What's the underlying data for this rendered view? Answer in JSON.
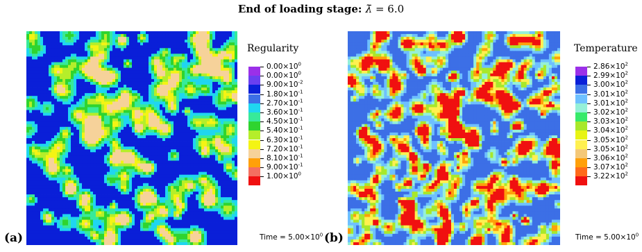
{
  "title": {
    "prefix": "End of loading stage: ",
    "symbol": "λ̄",
    "suffix": " = 6.0"
  },
  "panels": [
    {
      "label": "(a)",
      "legend_title": "Regularity",
      "time_text": "Time = 5.00×10",
      "time_exp": "0",
      "palette": [
        "#9b30e8",
        "#6a3ff0",
        "#0a1fd8",
        "#3c6fe6",
        "#1fd6f0",
        "#37ea9a",
        "#2fd42f",
        "#b5ee2a",
        "#f4f414",
        "#f6d29a",
        "#ffa00a",
        "#f46f60",
        "#f01010"
      ],
      "legend_values": [
        {
          "mant": "0.00×10",
          "exp": "0"
        },
        {
          "mant": "0.00×10",
          "exp": "0"
        },
        {
          "mant": "9.00×10",
          "exp": "-2"
        },
        {
          "mant": "1.80×10",
          "exp": "-1"
        },
        {
          "mant": "2.70×10",
          "exp": "-1"
        },
        {
          "mant": "3.60×10",
          "exp": "-1"
        },
        {
          "mant": "4.50×10",
          "exp": "-1"
        },
        {
          "mant": "5.40×10",
          "exp": "-1"
        },
        {
          "mant": "6.30×10",
          "exp": "-1"
        },
        {
          "mant": "7.20×10",
          "exp": "-1"
        },
        {
          "mant": "8.10×10",
          "exp": "-1"
        },
        {
          "mant": "9.00×10",
          "exp": "-1"
        },
        {
          "mant": "1.00×10",
          "exp": "0"
        }
      ]
    },
    {
      "label": "(b)",
      "legend_title": "Temperature",
      "time_text": "Time = 5.00×10",
      "time_exp": "0",
      "palette": [
        "#9b30e8",
        "#0a1fd8",
        "#3c6fe6",
        "#6ec0ff",
        "#95f0d8",
        "#37ea6a",
        "#a8e82a",
        "#e8f414",
        "#fff050",
        "#f4c878",
        "#ffa00a",
        "#ff6a1a",
        "#f01010"
      ],
      "legend_values": [
        {
          "mant": "2.86×10",
          "exp": "2"
        },
        {
          "mant": "2.99×10",
          "exp": "2"
        },
        {
          "mant": "3.00×10",
          "exp": "2"
        },
        {
          "mant": "3.01×10",
          "exp": "2"
        },
        {
          "mant": "3.01×10",
          "exp": "2"
        },
        {
          "mant": "3.02×10",
          "exp": "2"
        },
        {
          "mant": "3.03×10",
          "exp": "2"
        },
        {
          "mant": "3.04×10",
          "exp": "2"
        },
        {
          "mant": "3.05×10",
          "exp": "2"
        },
        {
          "mant": "3.05×10",
          "exp": "2"
        },
        {
          "mant": "3.06×10",
          "exp": "2"
        },
        {
          "mant": "3.07×10",
          "exp": "2"
        },
        {
          "mant": "3.22×10",
          "exp": "2"
        }
      ]
    }
  ]
}
